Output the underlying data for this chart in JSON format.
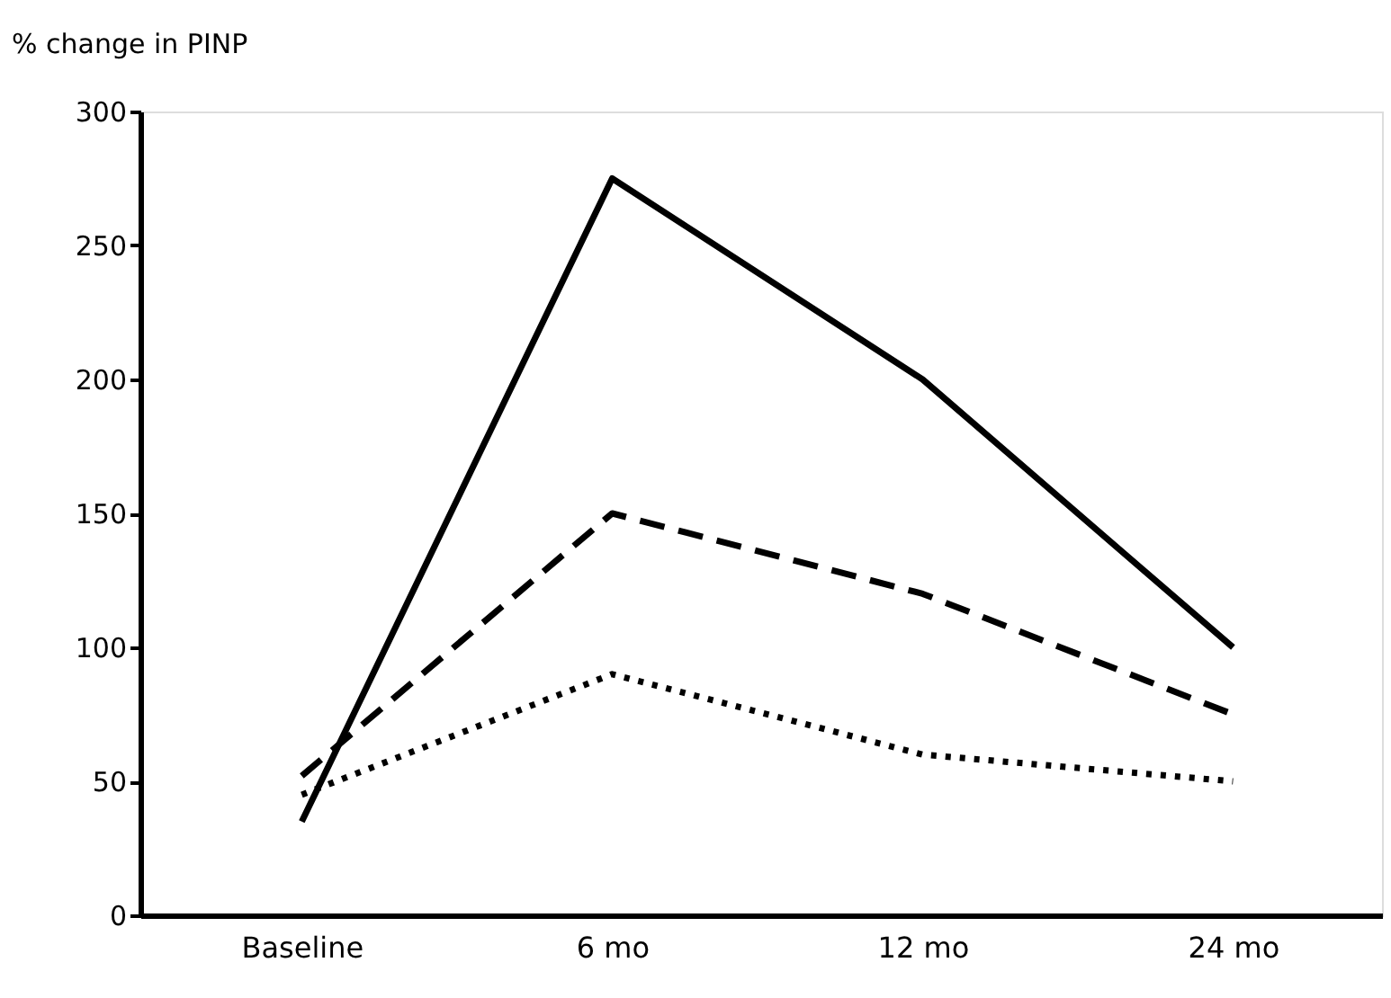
{
  "chart_data": {
    "type": "line",
    "ylabel": "% change in PINP",
    "categories": [
      "Baseline",
      "6 mo",
      "12 mo",
      "24 mo"
    ],
    "series": [
      {
        "color": "#000000",
        "line_style": "solid",
        "values": [
          35,
          275,
          200,
          100
        ]
      },
      {
        "color": "#000000",
        "line_style": "dashed",
        "values": [
          52,
          150,
          120,
          75
        ]
      },
      {
        "color": "#000000",
        "line_style": "dotted",
        "values": [
          45,
          90,
          60,
          50
        ]
      }
    ],
    "ylim": [
      0,
      300
    ],
    "yticks": [
      0,
      50,
      100,
      150,
      200,
      250,
      300
    ],
    "grid": false,
    "marker": "none"
  }
}
